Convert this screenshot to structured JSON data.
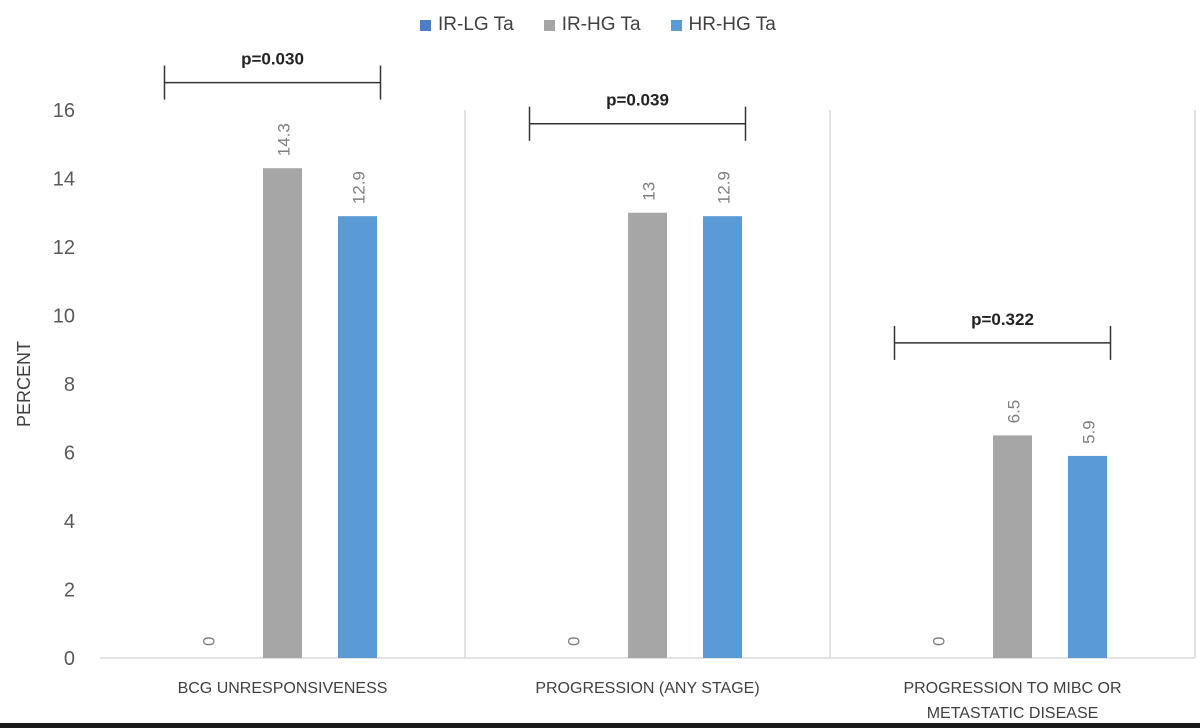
{
  "chart_data": {
    "type": "bar",
    "ylabel": "PERCENT",
    "ylim": [
      0,
      16
    ],
    "yticks": [
      "0",
      "2",
      "4",
      "6",
      "8",
      "10",
      "12",
      "14",
      "16"
    ],
    "categories": [
      [
        "BCG UNRESPONSIVENESS"
      ],
      [
        "PROGRESSION (ANY STAGE)"
      ],
      [
        "PROGRESSION TO MIBC OR",
        "METASTATIC DISEASE"
      ]
    ],
    "series": [
      {
        "name": "IR-LG Ta",
        "color": "#4a7fc6",
        "values": [
          0,
          0,
          0
        ],
        "labels": [
          "0",
          "0",
          "0"
        ]
      },
      {
        "name": "IR-HG Ta",
        "color": "#a6a6a6",
        "values": [
          14.3,
          13,
          6.5
        ],
        "labels": [
          "14.3",
          "13",
          "6.5"
        ]
      },
      {
        "name": "HR-HG Ta",
        "color": "#5b9bd5",
        "values": [
          12.9,
          12.9,
          5.9
        ],
        "labels": [
          "12.9",
          "12.9",
          "5.9"
        ]
      }
    ],
    "annotations": [
      {
        "category": 0,
        "text": "p=0.030",
        "level": 16.8
      },
      {
        "category": 1,
        "text": "p=0.039",
        "level": 15.6
      },
      {
        "category": 2,
        "text": "p=0.322",
        "level": 9.2
      }
    ],
    "legend_position": "top"
  }
}
